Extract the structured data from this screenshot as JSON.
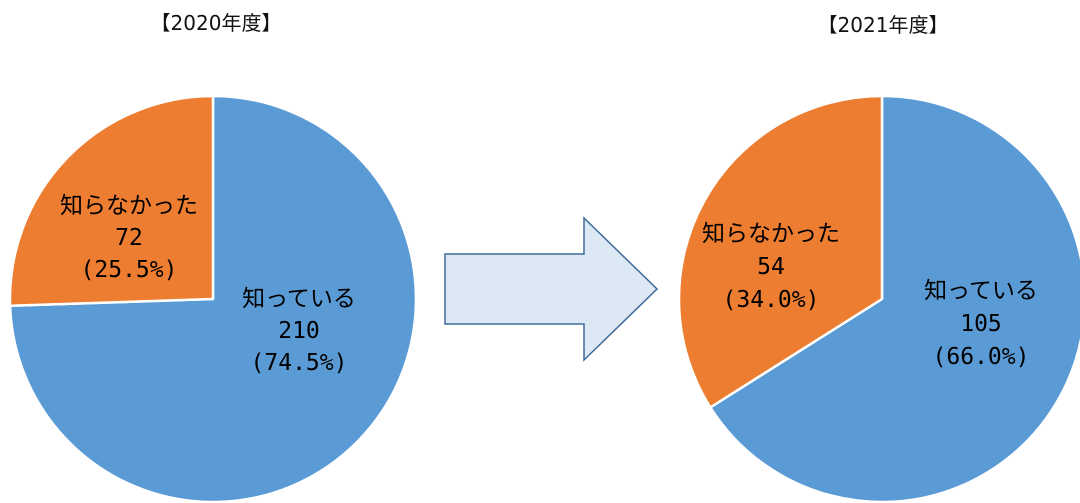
{
  "chart_data": [
    {
      "type": "pie",
      "title": "【2020年度】",
      "slices": [
        {
          "label": "知っている",
          "value": 210,
          "percent": "(74.5%)",
          "color": "#5b9bd5"
        },
        {
          "label": "知らなかった",
          "value": 72,
          "percent": "(25.5%)",
          "color": "#ed7d31"
        }
      ]
    },
    {
      "type": "pie",
      "title": "【2021年度】",
      "slices": [
        {
          "label": "知っている",
          "value": 105,
          "percent": "(66.0%)",
          "color": "#5b9bd5"
        },
        {
          "label": "知らなかった",
          "value": 54,
          "percent": "(34.0%)",
          "color": "#ed7d31"
        }
      ]
    }
  ],
  "arrow": {
    "icon": "right-arrow-icon",
    "fill": "#dde8f5",
    "stroke": "#3e6a9a"
  }
}
